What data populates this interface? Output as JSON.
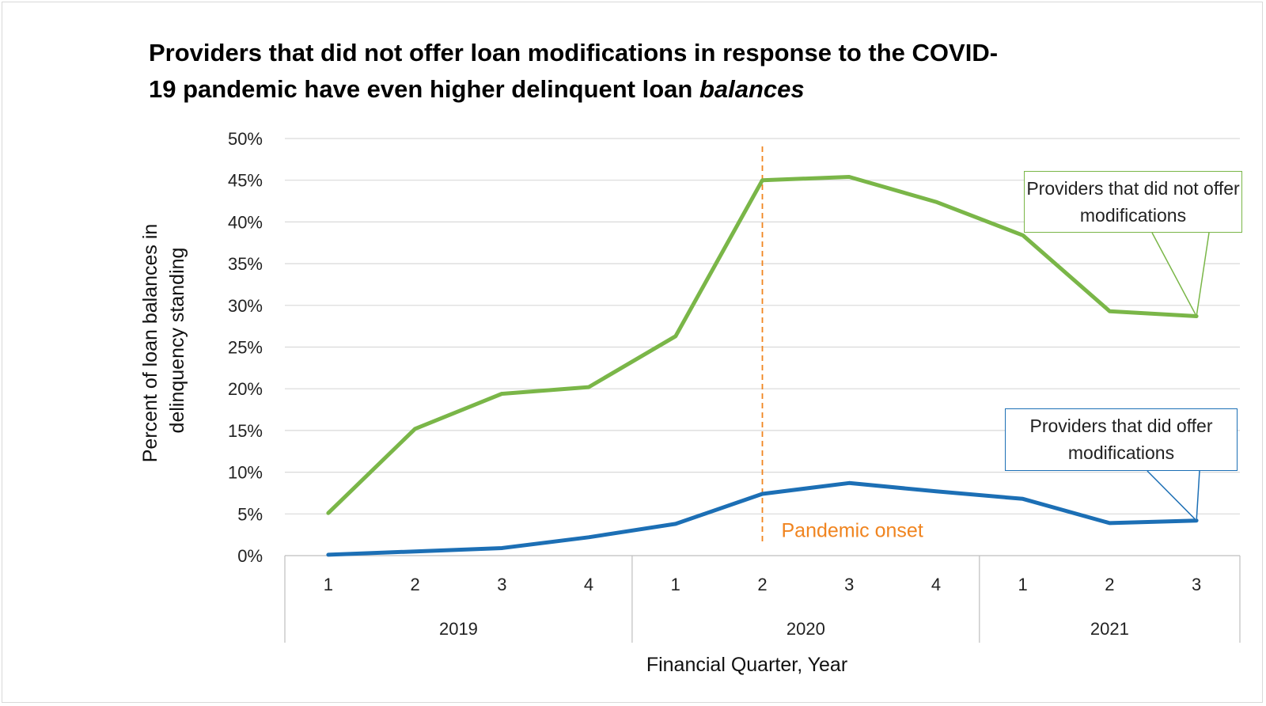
{
  "title_line1": "Providers that did not offer loan modifications in response to the COVID-",
  "title_line2_plain": "19 pandemic have even higher delinquent loan ",
  "title_line2_italic": "balances",
  "colors": {
    "green": "#7ab648",
    "blue": "#1c6fb5",
    "onset": "#f0841f",
    "grid": "#d9d9d9"
  },
  "chart_data": {
    "type": "line",
    "ylabel_line1": "Percent of loan balances in",
    "ylabel_line2": "delinquency standing",
    "xlabel": "Financial Quarter, Year",
    "ylim": [
      0,
      50
    ],
    "yticks": [
      "0%",
      "5%",
      "10%",
      "15%",
      "20%",
      "25%",
      "30%",
      "35%",
      "40%",
      "45%",
      "50%"
    ],
    "quarters": [
      "1",
      "2",
      "3",
      "4",
      "1",
      "2",
      "3",
      "4",
      "1",
      "2",
      "3"
    ],
    "years": [
      {
        "label": "2019",
        "count": 4
      },
      {
        "label": "2020",
        "count": 4
      },
      {
        "label": "2021",
        "count": 3
      }
    ],
    "series": [
      {
        "name": "Providers that did not offer modifications",
        "color": "#7ab648",
        "values": [
          5.1,
          15.2,
          19.4,
          20.2,
          26.3,
          45.0,
          45.4,
          42.4,
          38.4,
          29.3,
          28.7
        ]
      },
      {
        "name": "Providers that did offer modifications",
        "color": "#1c6fb5",
        "values": [
          0.1,
          0.5,
          0.9,
          2.2,
          3.8,
          7.4,
          8.7,
          7.7,
          6.8,
          3.9,
          4.2
        ]
      }
    ],
    "annotation": {
      "label": "Pandemic onset",
      "index": 5
    },
    "legend": "callouts at line ends",
    "grid": true
  }
}
